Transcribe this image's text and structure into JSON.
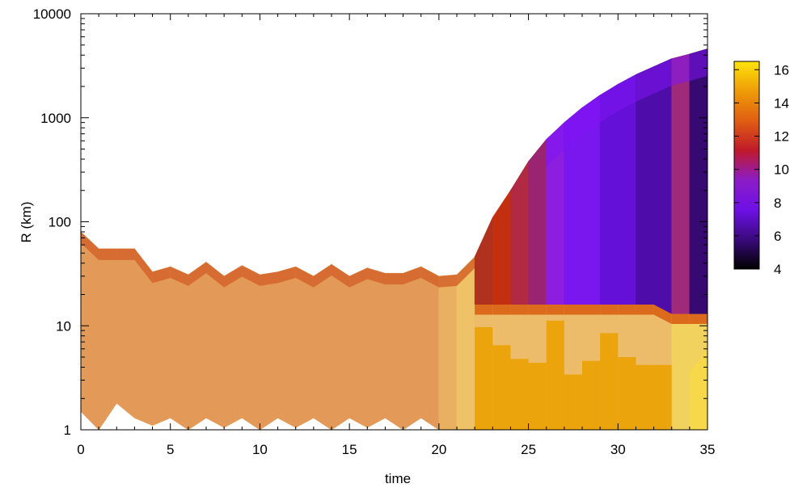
{
  "chart_data": {
    "type": "heatmap",
    "title": "",
    "xlabel": "time",
    "ylabel": "R (km)",
    "xlim": [
      0,
      35
    ],
    "ylim": [
      1,
      10000
    ],
    "y_scale": "log",
    "x_ticks": [
      "0",
      "5",
      "10",
      "15",
      "20",
      "25",
      "30",
      "35"
    ],
    "y_ticks": [
      "1",
      "10",
      "100",
      "1000",
      "10000"
    ],
    "colorbar": {
      "range": [
        4,
        16.5
      ],
      "ticks": [
        "4",
        "6",
        "8",
        "10",
        "12",
        "14",
        "16"
      ],
      "palette": [
        "#000000",
        "#3a0a7c",
        "#6e10e6",
        "#8c1cc6",
        "#c01a2a",
        "#e05e12",
        "#ee9c08",
        "#ffe40a"
      ]
    },
    "time": [
      0,
      1,
      2,
      3,
      4,
      5,
      6,
      7,
      8,
      9,
      10,
      11,
      12,
      13,
      14,
      15,
      16,
      17,
      18,
      19,
      20,
      21,
      22,
      23,
      24,
      25,
      26,
      27,
      28,
      29,
      30,
      31,
      32,
      33,
      34,
      35
    ],
    "outer_radius": [
      80,
      55,
      55,
      55,
      33,
      37,
      31,
      41,
      30,
      38,
      31,
      33,
      37,
      30,
      39,
      30,
      36,
      32,
      32,
      37,
      30,
      31,
      46,
      110,
      200,
      380,
      620,
      900,
      1250,
      1650,
      2100,
      2600,
      3100,
      3700,
      4100,
      4600
    ],
    "inner_radius": [
      1.5,
      1,
      1.8,
      1.3,
      1.1,
      1.3,
      1,
      1.3,
      1.05,
      1.3,
      1,
      1.3,
      1.05,
      1.3,
      1,
      1.3,
      1.05,
      1.3,
      1,
      1.3,
      1,
      1,
      1,
      1,
      1,
      1,
      1,
      1,
      1,
      1,
      1,
      1,
      1,
      1,
      1,
      1
    ],
    "core_bars": [
      {
        "t": [
          22,
          23
        ],
        "top": 9.7
      },
      {
        "t": [
          23,
          24
        ],
        "top": 6.5
      },
      {
        "t": [
          24,
          25
        ],
        "top": 4.8
      },
      {
        "t": [
          25,
          26
        ],
        "top": 4.4
      },
      {
        "t": [
          26,
          27
        ],
        "top": 11.2
      },
      {
        "t": [
          27,
          28
        ],
        "top": 3.4
      },
      {
        "t": [
          28,
          29
        ],
        "top": 4.6
      },
      {
        "t": [
          29,
          30
        ],
        "top": 8.5
      },
      {
        "t": [
          30,
          31
        ],
        "top": 5.0
      },
      {
        "t": [
          31,
          33
        ],
        "top": 4.2
      }
    ]
  }
}
